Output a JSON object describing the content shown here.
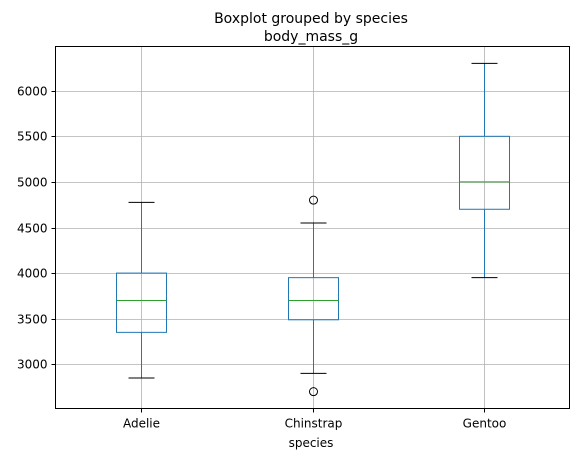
{
  "chart_data": {
    "type": "boxplot",
    "suptitle": "Boxplot grouped by species",
    "title": "body_mass_g",
    "xlabel": "species",
    "ylabel": "",
    "ylim": [
      2515,
      6485
    ],
    "yticks": [
      3000,
      3500,
      4000,
      4500,
      5000,
      5500,
      6000
    ],
    "grid": true,
    "categories": [
      "Adelie",
      "Chinstrap",
      "Gentoo"
    ],
    "boxes": [
      {
        "name": "Adelie",
        "whisker_low": 2850,
        "q1": 3350,
        "median": 3700,
        "q3": 4000,
        "whisker_high": 4775,
        "fliers": []
      },
      {
        "name": "Chinstrap",
        "whisker_low": 2900,
        "q1": 3488,
        "median": 3700,
        "q3": 3950,
        "whisker_high": 4550,
        "fliers": [
          4800,
          2700
        ]
      },
      {
        "name": "Gentoo",
        "whisker_low": 3950,
        "q1": 4700,
        "median": 5000,
        "q3": 5500,
        "whisker_high": 6300,
        "fliers": []
      }
    ],
    "colors": {
      "box": "#1f77b4",
      "median": "#2ca02c",
      "whisker": "#000000",
      "grid": "#b0b0b0",
      "flier": "#000000"
    }
  }
}
